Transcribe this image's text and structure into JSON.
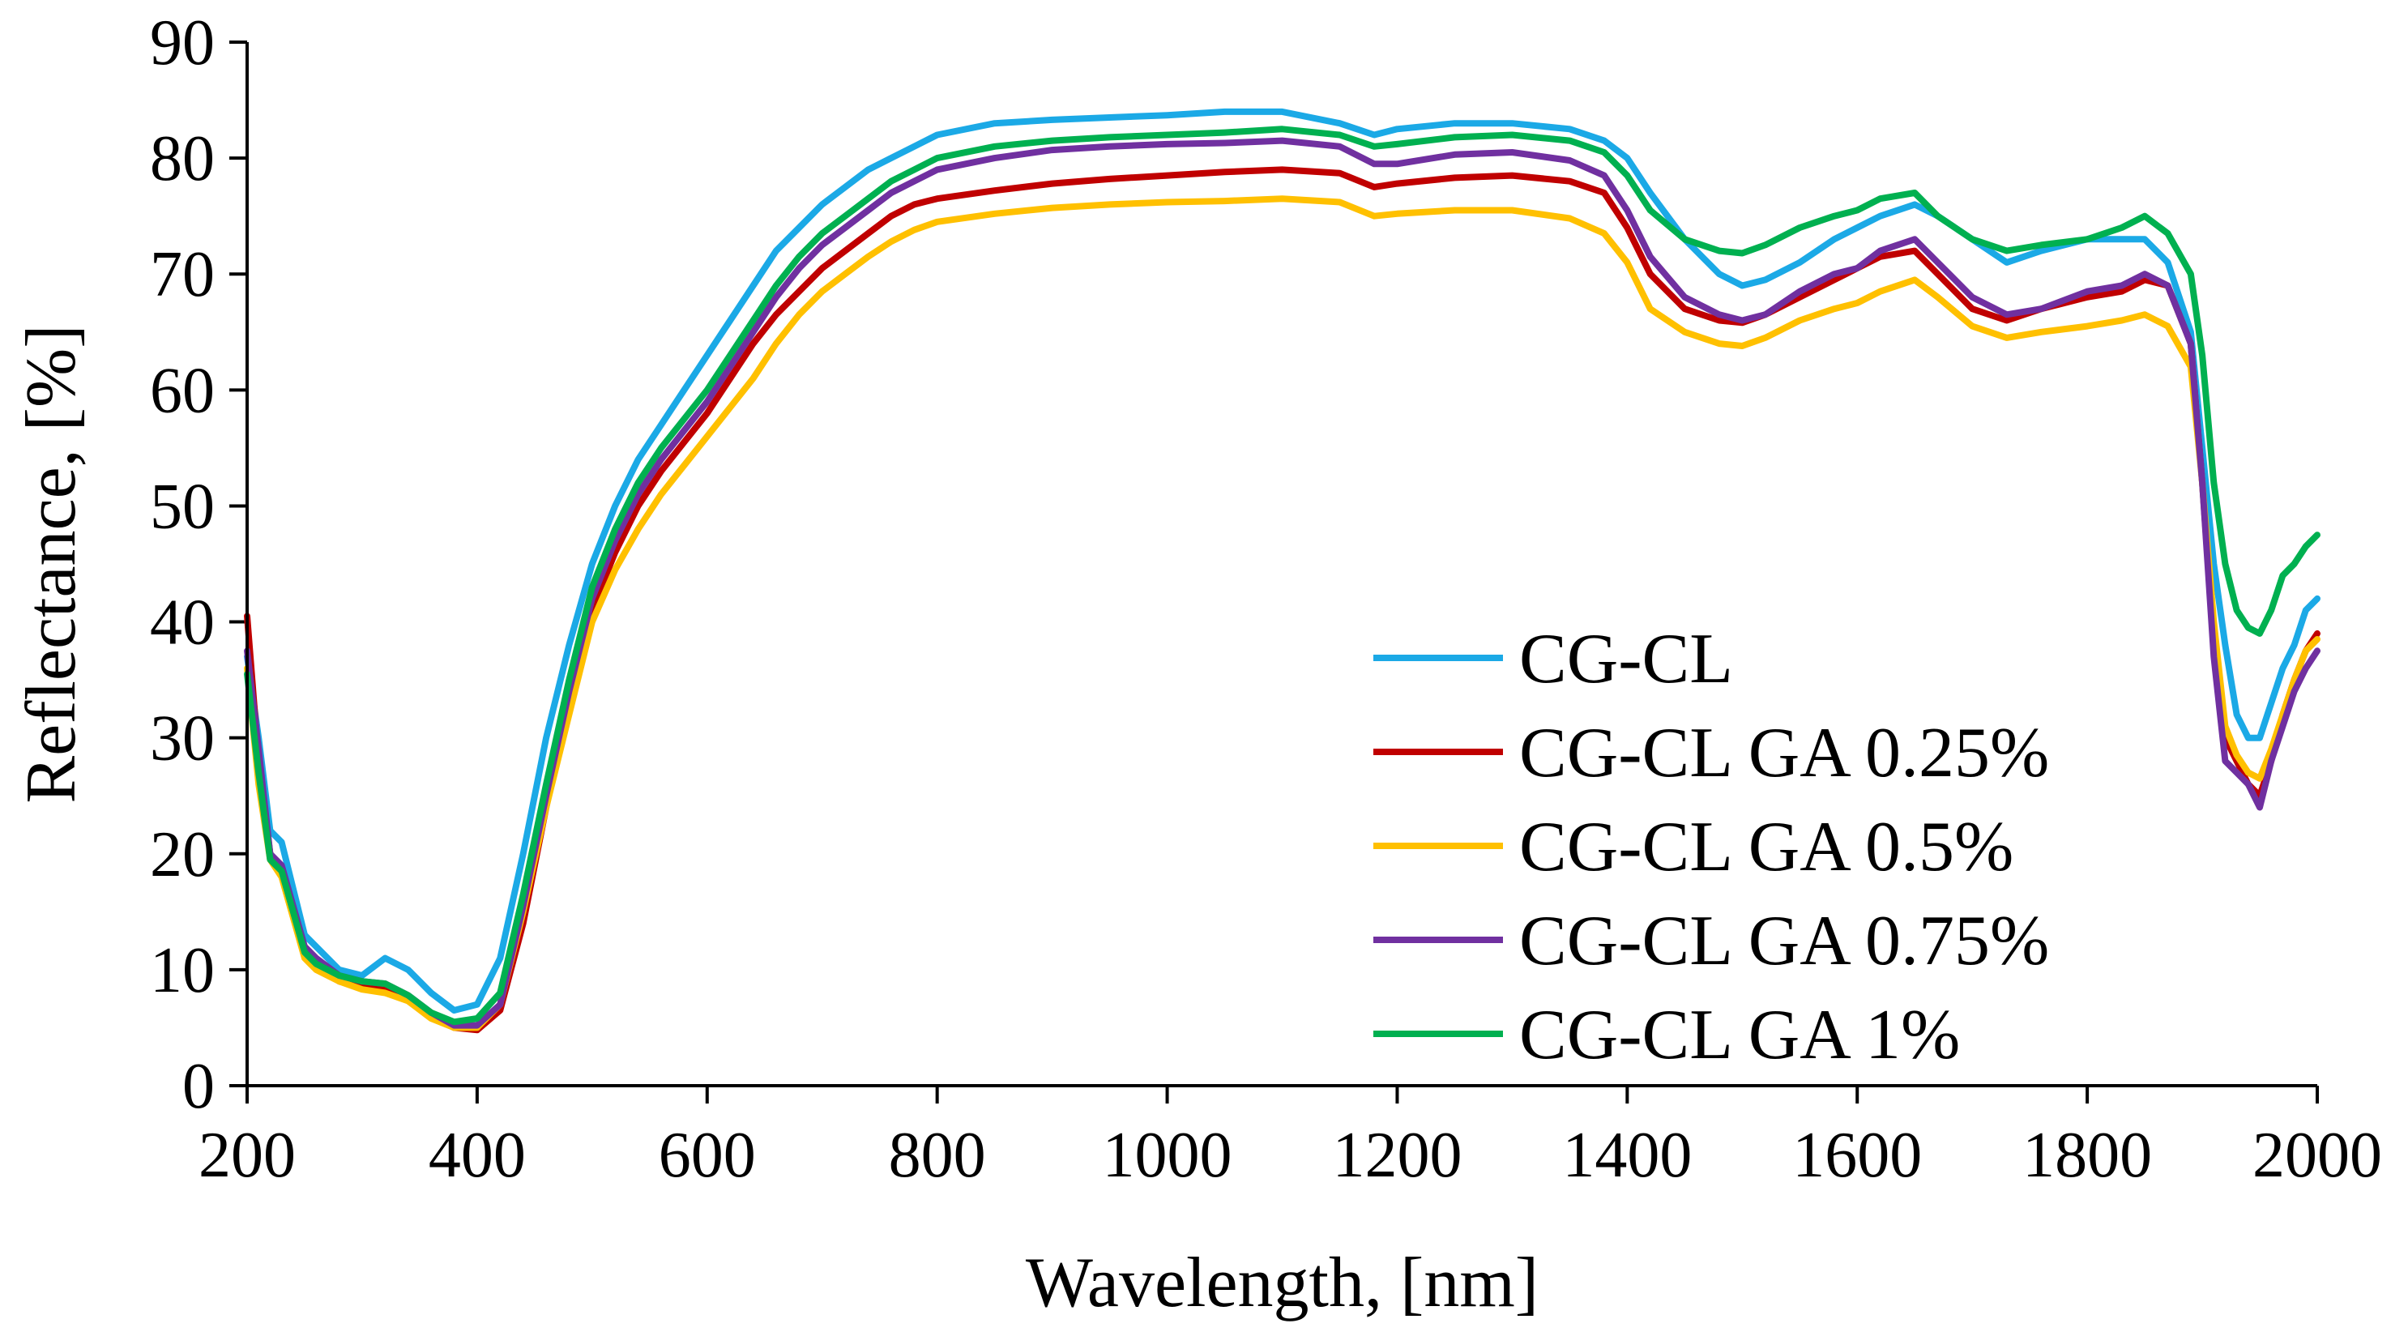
{
  "chart_data": {
    "type": "line",
    "title": "",
    "xlabel": "Wavelength, [nm]",
    "ylabel": "Reflectance, [%]",
    "xlim": [
      200,
      2000
    ],
    "ylim": [
      0,
      90
    ],
    "xticks": [
      "200",
      "400",
      "600",
      "800",
      "1000",
      "1200",
      "1400",
      "1600",
      "1800",
      "2000"
    ],
    "yticks": [
      "0",
      "10",
      "20",
      "30",
      "40",
      "50",
      "60",
      "70",
      "80",
      "90"
    ],
    "grid": false,
    "legend_position": "bottom-right",
    "x": [
      200,
      210,
      220,
      230,
      240,
      250,
      260,
      280,
      300,
      320,
      340,
      360,
      380,
      400,
      420,
      440,
      460,
      480,
      500,
      520,
      540,
      560,
      580,
      600,
      620,
      640,
      660,
      680,
      700,
      720,
      740,
      760,
      780,
      800,
      850,
      900,
      950,
      1000,
      1050,
      1100,
      1150,
      1180,
      1200,
      1250,
      1300,
      1350,
      1380,
      1400,
      1420,
      1450,
      1480,
      1500,
      1520,
      1550,
      1580,
      1600,
      1620,
      1650,
      1670,
      1700,
      1730,
      1760,
      1800,
      1830,
      1850,
      1870,
      1890,
      1900,
      1910,
      1920,
      1930,
      1940,
      1950,
      1960,
      1970,
      1980,
      1990,
      2000
    ],
    "series": [
      {
        "name": "CG-CL",
        "color": "#1ba9e6",
        "values": [
          37,
          30,
          22,
          21,
          17,
          13,
          12,
          10,
          9.5,
          11,
          10,
          8,
          6.5,
          7,
          11,
          20,
          30,
          38,
          45,
          50,
          54,
          57,
          60,
          63,
          66,
          69,
          72,
          74,
          76,
          77.5,
          79,
          80,
          81,
          82,
          83,
          83.3,
          83.5,
          83.7,
          84,
          84,
          83,
          82,
          82.5,
          83,
          83,
          82.5,
          81.5,
          80,
          77,
          73,
          70,
          69,
          69.5,
          71,
          73,
          74,
          75,
          76,
          75,
          73,
          71,
          72,
          73,
          73,
          73,
          71,
          65,
          55,
          45,
          38,
          32,
          30,
          30,
          33,
          36,
          38,
          41,
          42
        ]
      },
      {
        "name": "CG-CL GA 0.25%",
        "color": "#c00000",
        "values": [
          40.5,
          28,
          20,
          18.5,
          15,
          11.5,
          10.5,
          9,
          8.5,
          8.3,
          7.5,
          6,
          5,
          4.8,
          6.5,
          14,
          24,
          33,
          41,
          46,
          50,
          53,
          55.5,
          58,
          61,
          64,
          66.5,
          68.5,
          70.5,
          72,
          73.5,
          75,
          76,
          76.5,
          77.2,
          77.8,
          78.2,
          78.5,
          78.8,
          79,
          78.7,
          77.5,
          77.8,
          78.3,
          78.5,
          78,
          77,
          74,
          70,
          67,
          66,
          65.8,
          66.5,
          68,
          69.5,
          70.5,
          71.5,
          72,
          70,
          67,
          66,
          67,
          68,
          68.5,
          69.5,
          69,
          64,
          52,
          38,
          30,
          28,
          26,
          25,
          28,
          32,
          35,
          37.5,
          39
        ]
      },
      {
        "name": "CG-CL GA 0.5%",
        "color": "#ffc000",
        "values": [
          36,
          26,
          19.5,
          18,
          14.5,
          11,
          10,
          9,
          8.3,
          8,
          7.3,
          5.8,
          5,
          5,
          7,
          15,
          24,
          32,
          40,
          44.5,
          48,
          51,
          53.5,
          56,
          58.5,
          61,
          64,
          66.5,
          68.5,
          70,
          71.5,
          72.8,
          73.8,
          74.5,
          75.2,
          75.7,
          76,
          76.2,
          76.3,
          76.5,
          76.2,
          75,
          75.2,
          75.5,
          75.5,
          74.8,
          73.5,
          71,
          67,
          65,
          64,
          63.8,
          64.5,
          66,
          67,
          67.5,
          68.5,
          69.5,
          68,
          65.5,
          64.5,
          65,
          65.5,
          66,
          66.5,
          65.5,
          62,
          52,
          40,
          31,
          28.5,
          27,
          26.5,
          29,
          32,
          35,
          37.5,
          38.5
        ]
      },
      {
        "name": "CG-CL GA 0.75%",
        "color": "#7030a0",
        "values": [
          37.5,
          29,
          20,
          19,
          15.5,
          12,
          11,
          9.5,
          9,
          8.8,
          7.8,
          6.3,
          5.2,
          5.2,
          7,
          15.5,
          25,
          34,
          42,
          47,
          51,
          54,
          56.5,
          59,
          62,
          65,
          68,
          70.5,
          72.5,
          74,
          75.5,
          77,
          78,
          79,
          80,
          80.7,
          81,
          81.2,
          81.3,
          81.5,
          81,
          79.5,
          79.5,
          80.3,
          80.5,
          79.8,
          78.5,
          75.5,
          71.5,
          68,
          66.5,
          66,
          66.5,
          68.5,
          70,
          70.5,
          72,
          73,
          71,
          68,
          66.5,
          67,
          68.5,
          69,
          70,
          69,
          64,
          52,
          37,
          28,
          27,
          26,
          24,
          28,
          31,
          34,
          36,
          37.5
        ]
      },
      {
        "name": "CG-CL GA 1%",
        "color": "#00b050",
        "values": [
          35.5,
          27,
          19.5,
          18.5,
          15,
          11.5,
          10.5,
          9.5,
          9,
          8.8,
          7.8,
          6.3,
          5.5,
          5.8,
          8,
          16.5,
          26,
          35,
          43,
          48,
          52,
          55,
          57.5,
          60,
          63,
          66,
          69,
          71.5,
          73.5,
          75,
          76.5,
          78,
          79,
          80,
          81,
          81.5,
          81.8,
          82,
          82.2,
          82.5,
          82,
          81,
          81.2,
          81.8,
          82,
          81.5,
          80.5,
          78.5,
          75.5,
          73,
          72,
          71.8,
          72.5,
          74,
          75,
          75.5,
          76.5,
          77,
          75,
          73,
          72,
          72.5,
          73,
          74,
          75,
          73.5,
          70,
          63,
          52,
          45,
          41,
          39.5,
          39,
          41,
          44,
          45,
          46.5,
          47.5
        ]
      }
    ]
  }
}
